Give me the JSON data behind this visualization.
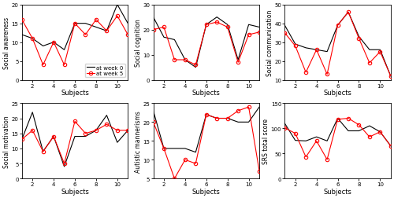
{
  "subjects": [
    1,
    2,
    3,
    4,
    5,
    6,
    7,
    8,
    9,
    10,
    11
  ],
  "social_awareness": {
    "baseline": [
      12,
      11,
      9,
      10,
      8,
      15,
      15,
      14,
      13,
      20,
      15
    ],
    "endpoint": [
      16,
      11,
      4,
      10,
      4,
      15,
      12,
      16,
      13,
      17,
      12
    ],
    "ylabel": "Social awareness",
    "ylim": [
      0,
      20
    ],
    "yticks": [
      0,
      5,
      10,
      15,
      20
    ]
  },
  "social_cognition": {
    "baseline": [
      25,
      17,
      16,
      8,
      5,
      22,
      25,
      22,
      8,
      22,
      21
    ],
    "endpoint": [
      20,
      21,
      8,
      8,
      6,
      22,
      23,
      21,
      7,
      18,
      19
    ],
    "ylabel": "Social cognition",
    "ylim": [
      0,
      30
    ],
    "yticks": [
      0,
      10,
      20,
      30
    ]
  },
  "social_communication": {
    "baseline": [
      39,
      29,
      27,
      26,
      25,
      39,
      46,
      33,
      26,
      26,
      12
    ],
    "endpoint": [
      35,
      28,
      14,
      26,
      13,
      39,
      46,
      32,
      19,
      25,
      12
    ],
    "ylabel": "Social communication",
    "ylim": [
      10,
      50
    ],
    "yticks": [
      10,
      20,
      30,
      40,
      50
    ]
  },
  "social_motivation": {
    "baseline": [
      13,
      22,
      9,
      14,
      4,
      14,
      14,
      16,
      21,
      12,
      16
    ],
    "endpoint": [
      13,
      16,
      9,
      14,
      5,
      19,
      15,
      16,
      18,
      16,
      16
    ],
    "ylabel": "Social motivation",
    "ylim": [
      0,
      25
    ],
    "yticks": [
      0,
      5,
      10,
      15,
      20,
      25
    ]
  },
  "autistic_mannerisms": {
    "baseline": [
      23,
      13,
      13,
      13,
      12,
      22,
      21,
      21,
      20,
      20,
      24
    ],
    "endpoint": [
      20,
      13,
      5,
      10,
      9,
      22,
      21,
      21,
      23,
      24,
      7
    ],
    "ylabel": "Autistic mannerisms",
    "ylim": [
      5,
      25
    ],
    "yticks": [
      5,
      10,
      15,
      20,
      25
    ]
  },
  "srs_total": {
    "baseline": [
      110,
      76,
      75,
      83,
      75,
      120,
      95,
      95,
      105,
      93,
      65
    ],
    "endpoint": [
      101,
      90,
      43,
      75,
      38,
      118,
      120,
      107,
      83,
      93,
      65
    ],
    "ylabel": "SRS total score",
    "ylim": [
      0,
      150
    ],
    "yticks": [
      0,
      50,
      100,
      150
    ]
  },
  "legend_labels": [
    "at week 0",
    "at week 5"
  ],
  "xlabel": "Subjects",
  "baseline_color": "#000000",
  "endpoint_color": "#ff0000"
}
